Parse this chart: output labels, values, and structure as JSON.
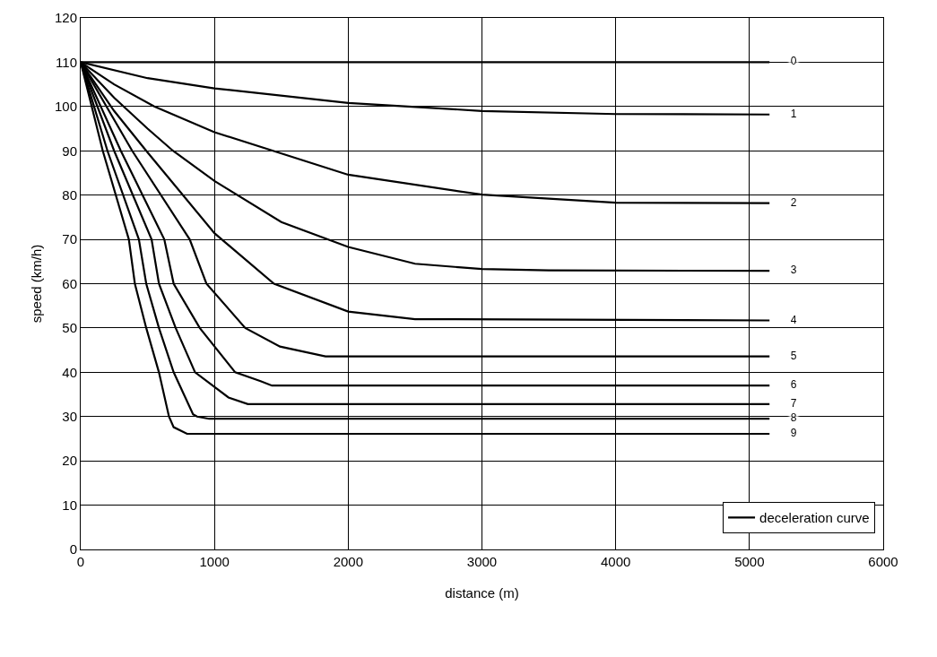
{
  "chart_data": {
    "type": "line",
    "xlabel": "distance (m)",
    "ylabel": "speed (km/h)",
    "xlim": [
      0,
      6000
    ],
    "xticks": [
      0,
      1000,
      2000,
      3000,
      4000,
      5000,
      6000
    ],
    "ylim": [
      0,
      120
    ],
    "yticks": [
      0,
      10,
      20,
      30,
      40,
      50,
      60,
      70,
      80,
      90,
      100,
      110,
      120
    ],
    "grid": true,
    "legend": "bottom right",
    "line_style": "solid",
    "marker": "none",
    "series": [
      {
        "name": "deceleration curve",
        "color": "#000000",
        "x": [
          0,
          5150
        ],
        "values": [
          110,
          110
        ]
      },
      {
        "color": "#000000",
        "x": [
          0,
          500,
          1000,
          2000,
          3000,
          4000,
          5150
        ],
        "values": [
          110,
          106.4,
          104.1,
          100.8,
          99,
          98.3,
          98.2
        ]
      },
      {
        "color": "#000000",
        "x": [
          0,
          250,
          550,
          1000,
          2000,
          3000,
          4000,
          5150
        ],
        "values": [
          110,
          105,
          100,
          94.2,
          84.6,
          80.1,
          78.3,
          78.2
        ]
      },
      {
        "color": "#000000",
        "x": [
          0,
          250,
          500,
          690,
          1000,
          1500,
          2000,
          2500,
          3000,
          3500,
          5150
        ],
        "values": [
          110,
          102,
          95,
          90,
          83.2,
          73.9,
          68.3,
          64.5,
          63.3,
          63,
          62.9
        ]
      },
      {
        "color": "#000000",
        "x": [
          0,
          250,
          490,
          1000,
          1445,
          2000,
          2500,
          5150
        ],
        "values": [
          110,
          99,
          90,
          71.4,
          60,
          53.7,
          52,
          51.7
        ]
      },
      {
        "color": "#000000",
        "x": [
          0,
          385,
          815,
          940,
          1230,
          1490,
          1830,
          5150
        ],
        "values": [
          110,
          90,
          70,
          60,
          50,
          45.8,
          43.6,
          43.6
        ]
      },
      {
        "color": "#000000",
        "x": [
          0,
          300,
          625,
          695,
          890,
          1155,
          1345,
          1430,
          5150
        ],
        "values": [
          110,
          90,
          70,
          60,
          50,
          40,
          38,
          37,
          37
        ]
      },
      {
        "color": "#000000",
        "x": [
          0,
          250,
          530,
          585,
          710,
          855,
          1105,
          1250,
          5150
        ],
        "values": [
          110,
          90,
          70,
          60,
          50,
          40,
          34.3,
          32.8,
          32.8
        ]
      },
      {
        "color": "#000000",
        "x": [
          0,
          200,
          435,
          490,
          585,
          695,
          840,
          870,
          960,
          5150
        ],
        "values": [
          110,
          90,
          70,
          60,
          50,
          40,
          30.5,
          30,
          29.5,
          29.5
        ]
      },
      {
        "color": "#000000",
        "x": [
          0,
          165,
          360,
          405,
          490,
          585,
          660,
          695,
          795,
          5150
        ],
        "values": [
          110,
          90,
          70,
          60,
          50,
          40,
          30,
          27.6,
          26.1,
          26.1
        ]
      }
    ],
    "annotations": [
      "0",
      "1",
      "2",
      "3",
      "4",
      "5",
      "6",
      "7",
      "8",
      "9"
    ]
  }
}
